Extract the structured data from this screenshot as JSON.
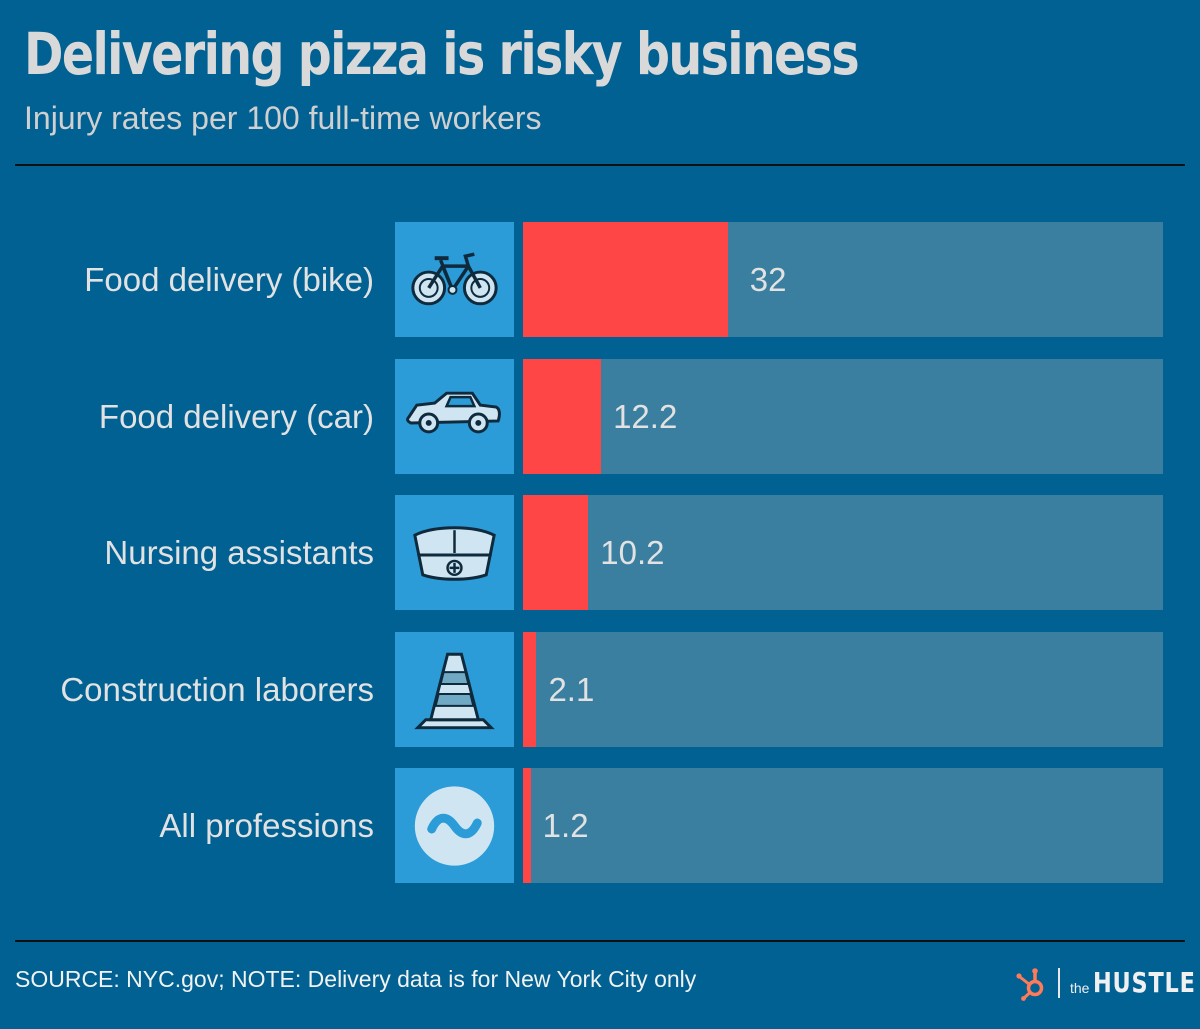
{
  "header": {
    "title": "Delivering pizza is risky business",
    "subtitle": "Injury rates per 100 full-time workers"
  },
  "chart_data": {
    "type": "bar",
    "orientation": "horizontal",
    "title": "Delivering pizza is risky business",
    "subtitle": "Injury rates per 100 full-time workers",
    "categories": [
      "Food delivery (bike)",
      "Food delivery (car)",
      "Nursing assistants",
      "Construction laborers",
      "All professions"
    ],
    "values": [
      32,
      12.2,
      10.2,
      2.1,
      1.2
    ],
    "value_labels": [
      "32",
      "12.2",
      "10.2",
      "2.1",
      "1.2"
    ],
    "icons": [
      "bicycle-icon",
      "car-icon",
      "nurse-cap-icon",
      "traffic-cone-icon",
      "approximately-icon"
    ],
    "xlim": [
      0,
      100
    ],
    "grid": false,
    "legend": "none",
    "colors": {
      "bar": "#ff4646",
      "track": "#3a7fa0",
      "background": "#006192",
      "icon_box": "#2b9cd8"
    }
  },
  "footer": {
    "note": "SOURCE: NYC.gov; NOTE: Delivery data is for New York City only",
    "brand_the": "the",
    "brand_name": "HUSTLE"
  }
}
